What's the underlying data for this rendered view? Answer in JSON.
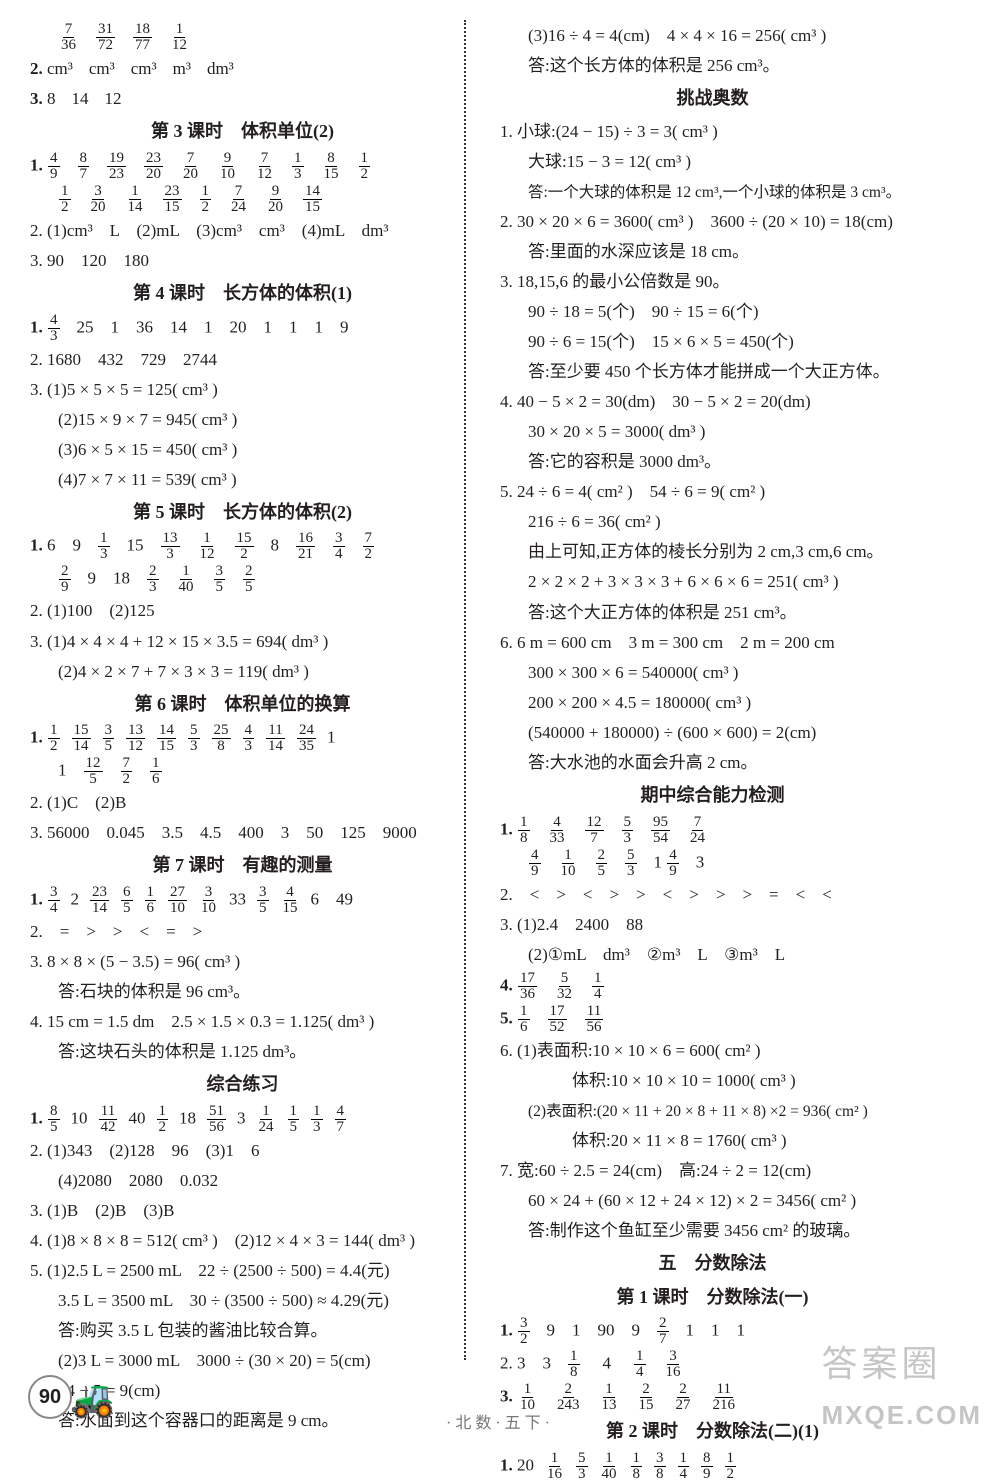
{
  "left": {
    "intro_frac_row": [
      [
        "7",
        "36"
      ],
      [
        "31",
        "72"
      ],
      [
        "18",
        "77"
      ],
      [
        "1",
        "12"
      ]
    ],
    "l2_label": "2.",
    "l2_units": [
      "cm³",
      "cm³",
      "cm³",
      "m³",
      "dm³"
    ],
    "l3_label": "3.",
    "l3_vals": [
      "8",
      "14",
      "12"
    ],
    "sect3_title": "第 3 课时　体积单位(2)",
    "s3_l1_label": "1.",
    "s3_l1_r1": [
      [
        "4",
        "9"
      ],
      [
        "8",
        "7"
      ],
      [
        "19",
        "23"
      ],
      [
        "23",
        "20"
      ],
      [
        "7",
        "20"
      ],
      [
        "9",
        "10"
      ],
      [
        "7",
        "12"
      ],
      [
        "1",
        "3"
      ],
      [
        "8",
        "15"
      ],
      [
        "1",
        "2"
      ]
    ],
    "s3_l1_r2": [
      [
        "1",
        "2"
      ],
      [
        "3",
        "20"
      ],
      [
        "1",
        "14"
      ],
      [
        "23",
        "15"
      ],
      [
        "1",
        "2"
      ],
      [
        "7",
        "24"
      ],
      [
        "9",
        "20"
      ],
      [
        "14",
        "15"
      ]
    ],
    "s3_l2": "2. (1)cm³　L　(2)mL　(3)cm³　cm³　(4)mL　dm³",
    "s3_l3": "3. 90　120　180",
    "sect4_title": "第 4 课时　长方体的体积(1)",
    "s4_l1_label": "1.",
    "s4_l1_frac": [
      [
        "4",
        "3"
      ]
    ],
    "s4_l1_rest": "25　1　36　14　1　20　1　1　1　9",
    "s4_l2": "2. 1680　432　729　2744",
    "s4_l3": "3. (1)5 × 5 × 5 = 125( cm³ )",
    "s4_l3b": "(2)15 × 9 × 7 = 945( cm³ )",
    "s4_l3c": "(3)6 × 5 × 15 = 450( cm³ )",
    "s4_l3d": "(4)7 × 7 × 11 = 539( cm³ )",
    "sect5_title": "第 5 课时　长方体的体积(2)",
    "s5_l1_label": "1.",
    "s5_l1_r1_pre": "6　9",
    "s5_l1_r1_f": [
      [
        "1",
        "3"
      ]
    ],
    "s5_l1_r1_m1": "15",
    "s5_l1_r1_fb": [
      [
        "13",
        "3"
      ],
      [
        "1",
        "12"
      ],
      [
        "15",
        "2"
      ]
    ],
    "s5_l1_r1_m2": "8",
    "s5_l1_r1_fc": [
      [
        "16",
        "21"
      ],
      [
        "3",
        "4"
      ],
      [
        "7",
        "2"
      ]
    ],
    "s5_l1_r2a": [
      [
        "2",
        "9"
      ]
    ],
    "s5_l1_r2b": "9　18",
    "s5_l1_r2c": [
      [
        "2",
        "3"
      ],
      [
        "1",
        "40"
      ],
      [
        "3",
        "5"
      ],
      [
        "2",
        "5"
      ]
    ],
    "s5_l2": "2. (1)100　(2)125",
    "s5_l3": "3. (1)4 × 4 × 4 + 12 × 15 × 3.5 = 694( dm³ )",
    "s5_l3b": "(2)4 × 2 × 7 + 7 × 3 × 3 = 119( dm³ )",
    "sect6_title": "第 6 课时　体积单位的换算",
    "s6_l1_label": "1.",
    "s6_l1_r1": [
      [
        "1",
        "2"
      ],
      [
        "15",
        "14"
      ],
      [
        "3",
        "5"
      ],
      [
        "13",
        "12"
      ],
      [
        "14",
        "15"
      ],
      [
        "5",
        "3"
      ],
      [
        "25",
        "8"
      ],
      [
        "4",
        "3"
      ],
      [
        "11",
        "14"
      ],
      [
        "24",
        "35"
      ]
    ],
    "s6_l1_r1_tail": "1",
    "s6_l1_r2_head": "1",
    "s6_l1_r2": [
      [
        "12",
        "5"
      ],
      [
        "7",
        "2"
      ],
      [
        "1",
        "6"
      ]
    ],
    "s6_l2": "2. (1)C　(2)B",
    "s6_l3": "3. 56000　0.045　3.5　4.5　400　3　50　125　9000",
    "sect7_title": "第 7 课时　有趣的测量",
    "s7_l1_label": "1.",
    "s7_l1_f1": [
      [
        "3",
        "4"
      ]
    ],
    "s7_l1_m1": "2",
    "s7_l1_f2": [
      [
        "23",
        "14"
      ],
      [
        "6",
        "5"
      ],
      [
        "1",
        "6"
      ],
      [
        "27",
        "10"
      ],
      [
        "3",
        "10"
      ]
    ],
    "s7_l1_m2": "33",
    "s7_l1_f3": [
      [
        "3",
        "5"
      ],
      [
        "4",
        "15"
      ]
    ],
    "s7_l1_m3": "6　49",
    "s7_l2": "2.　=　>　>　<　=　>",
    "s7_l3": "3. 8 × 8 × (5 − 3.5) = 96( cm³ )",
    "s7_l3a": "答:石块的体积是 96 cm³。",
    "s7_l4": "4. 15 cm = 1.5 dm　2.5 × 1.5 × 0.3 = 1.125( dm³ )",
    "s7_l4a": "答:这块石头的体积是 1.125 dm³。",
    "sect8_title": "综合练习",
    "s8_l1_label": "1.",
    "s8_l1_f1": [
      [
        "8",
        "5"
      ]
    ],
    "s8_l1_m1": "10",
    "s8_l1_f2": [
      [
        "11",
        "42"
      ]
    ],
    "s8_l1_m2": "40",
    "s8_l1_f3": [
      [
        "1",
        "2"
      ]
    ],
    "s8_l1_m3": "18",
    "s8_l1_f4": [
      [
        "51",
        "56"
      ]
    ],
    "s8_l1_m4": "3",
    "s8_l1_f5": [
      [
        "1",
        "24"
      ],
      [
        "1",
        "5"
      ],
      [
        "1",
        "3"
      ],
      [
        "4",
        "7"
      ]
    ],
    "s8_l2": "2. (1)343　(2)128　96　(3)1　6",
    "s8_l2b": "(4)2080　2080　0.032",
    "s8_l3": "3. (1)B　(2)B　(3)B",
    "s8_l4": "4. (1)8 × 8 × 8 = 512( cm³ )　(2)12 × 4 × 3 = 144( dm³ )",
    "s8_l5": "5. (1)2.5 L = 2500 mL　22 ÷ (2500 ÷ 500) = 4.4(元)",
    "s8_l5b": "3.5 L = 3500 mL　30 ÷ (3500 ÷ 500) ≈ 4.29(元)",
    "s8_l5c": "答:购买 3.5 L 包装的酱油比较合算。",
    "s8_l5d": "(2)3 L = 3000 mL　3000 ÷ (30 × 20) = 5(cm)",
    "s8_l5e": "14 − 5 = 9(cm)",
    "s8_l5f": "答:水面到这个容器口的距离是 9 cm。"
  },
  "right": {
    "r0a": "(3)16 ÷ 4 = 4(cm)　4 × 4 × 16 = 256( cm³ )",
    "r0b": "答:这个长方体的体积是 256 cm³。",
    "olytitle": "挑战奥数",
    "o1": "1. 小球:(24 − 15) ÷ 3 = 3( cm³ )",
    "o1b": "大球:15 − 3 = 12( cm³ )",
    "o1c": "答:一个大球的体积是 12 cm³,一个小球的体积是 3 cm³。",
    "o2": "2. 30 × 20 × 6 = 3600( cm³ )　3600 ÷ (20 × 10) = 18(cm)",
    "o2b": "答:里面的水深应该是 18 cm。",
    "o3": "3. 18,15,6 的最小公倍数是 90。",
    "o3b": "90 ÷ 18 = 5(个)　90 ÷ 15 = 6(个)",
    "o3c": "90 ÷ 6 = 15(个)　15 × 6 × 5 = 450(个)",
    "o3d": "答:至少要 450 个长方体才能拼成一个大正方体。",
    "o4": "4. 40 − 5 × 2 = 30(dm)　30 − 5 × 2 = 20(dm)",
    "o4b": "30 × 20 × 5 = 3000( dm³ )",
    "o4c": "答:它的容积是 3000 dm³。",
    "o5": "5. 24 ÷ 6 = 4( cm² )　54 ÷ 6 = 9( cm² )",
    "o5b": "216 ÷ 6 = 36( cm² )",
    "o5c": "由上可知,正方体的棱长分别为 2 cm,3 cm,6 cm。",
    "o5d": "2 × 2 × 2 + 3 × 3 × 3 + 6 × 6 × 6 = 251( cm³ )",
    "o5e": "答:这个大正方体的体积是 251 cm³。",
    "o6": "6. 6 m = 600 cm　3 m = 300 cm　2 m = 200 cm",
    "o6b": "300 × 300 × 6 = 540000( cm³ )",
    "o6c": "200 × 200 × 4.5 = 180000( cm³ )",
    "o6d": "(540000 + 180000) ÷ (600 × 600) = 2(cm)",
    "o6e": "答:大水池的水面会升高 2 cm。",
    "midtitle": "期中综合能力检测",
    "m1_label": "1.",
    "m1_r1": [
      [
        "1",
        "8"
      ],
      [
        "4",
        "33"
      ],
      [
        "12",
        "7"
      ],
      [
        "5",
        "3"
      ],
      [
        "95",
        "54"
      ],
      [
        "7",
        "24"
      ]
    ],
    "m1_r2a": [
      [
        "4",
        "9"
      ],
      [
        "1",
        "10"
      ],
      [
        "2",
        "5"
      ],
      [
        "5",
        "3"
      ]
    ],
    "m1_r2_txt1": "1",
    "m1_r2b": [
      [
        "4",
        "9"
      ]
    ],
    "m1_r2_txt2": "3",
    "m2": "2.　<　>　<　>　>　<　>　>　>　=　<　<",
    "m3": "3. (1)2.4　2400　88",
    "m3b": "(2)①mL　dm³　②m³　L　③m³　L",
    "m4_label": "4.",
    "m4": [
      [
        "17",
        "36"
      ],
      [
        "5",
        "32"
      ],
      [
        "1",
        "4"
      ]
    ],
    "m5_label": "5.",
    "m5": [
      [
        "1",
        "6"
      ],
      [
        "17",
        "52"
      ],
      [
        "11",
        "56"
      ]
    ],
    "m6": "6. (1)表面积:10 × 10 × 6 = 600( cm² )",
    "m6b": "体积:10 × 10 × 10 = 1000( cm³ )",
    "m6c": "(2)表面积:(20 × 11 + 20 × 8 + 11 × 8) ×2 = 936( cm² )",
    "m6d": "体积:20 × 11 × 8 = 1760( cm³ )",
    "m7": "7. 宽:60 ÷ 2.5 = 24(cm)　高:24 ÷ 2 = 12(cm)",
    "m7b": "60 × 24 + (60 × 12 + 24 × 12) × 2 = 3456( cm² )",
    "m7c": "答:制作这个鱼缸至少需要 3456 cm² 的玻璃。",
    "unit5": "五　分数除法",
    "u5_s1t": "第 1 课时　分数除法(一)",
    "u5_1_label": "1.",
    "u5_1_f1": [
      [
        "3",
        "2"
      ]
    ],
    "u5_1_m1": "9　1　90　9",
    "u5_1_f2": [
      [
        "2",
        "7"
      ]
    ],
    "u5_1_m2": "1　1　1",
    "u5_2": "2. 3　3",
    "u5_2_f1": [
      [
        "1",
        "8"
      ]
    ],
    "u5_2_m1": "4",
    "u5_2_f2": [
      [
        "1",
        "4"
      ],
      [
        "3",
        "16"
      ]
    ],
    "u5_3_label": "3.",
    "u5_3": [
      [
        "1",
        "10"
      ],
      [
        "2",
        "243"
      ],
      [
        "1",
        "13"
      ],
      [
        "2",
        "15"
      ],
      [
        "2",
        "27"
      ],
      [
        "11",
        "216"
      ]
    ],
    "u5_s2t": "第 2 课时　分数除法(二)(1)",
    "u5_4_label": "1.",
    "u5_4_m0": "20",
    "u5_4": [
      [
        "1",
        "16"
      ],
      [
        "5",
        "3"
      ],
      [
        "1",
        "40"
      ],
      [
        "1",
        "8"
      ],
      [
        "3",
        "8"
      ],
      [
        "1",
        "4"
      ],
      [
        "8",
        "9"
      ],
      [
        "1",
        "2"
      ]
    ]
  },
  "footer": {
    "pagenum": "90",
    "runner": "·北数·五下·",
    "wm_top": "答案圈",
    "wm_bot": "MXQE.COM"
  },
  "colors": {
    "text": "#231f20",
    "divider": "#333333"
  }
}
